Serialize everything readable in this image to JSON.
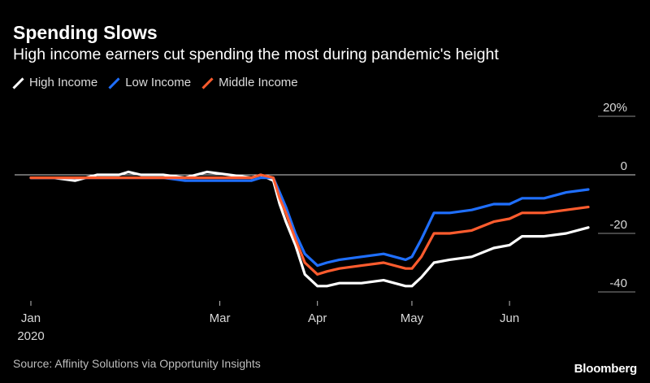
{
  "header": {
    "title": "Spending Slows",
    "subtitle": "High income earners cut spending the most during pandemic's height"
  },
  "legend": [
    {
      "label": "High Income",
      "color": "#ffffff"
    },
    {
      "label": "Low Income",
      "color": "#1f6fff"
    },
    {
      "label": "Middle Income",
      "color": "#ff5c2e"
    }
  ],
  "footer": {
    "source": "Source: Affinity Solutions via Opportunity Insights",
    "brand": "Bloomberg"
  },
  "chart_data": {
    "type": "line",
    "title": "Spending Slows",
    "subtitle": "High income earners cut spending the most during pandemic's height",
    "xlabel": "",
    "ylabel": "",
    "x_range": [
      "2020-01-01",
      "2020-06-26"
    ],
    "ylim": [
      -43,
      22
    ],
    "y_ticks": [
      20,
      0,
      -20,
      -40
    ],
    "y_tick_labels": [
      "20%",
      "0",
      "-20",
      "-40"
    ],
    "x_ticks": [
      {
        "date": "2020-01-01",
        "label": "Jan",
        "sublabel": "2020"
      },
      {
        "date": "2020-03-01",
        "label": "Mar",
        "sublabel": ""
      },
      {
        "date": "2020-04-01",
        "label": "Apr",
        "sublabel": ""
      },
      {
        "date": "2020-05-01",
        "label": "May",
        "sublabel": ""
      },
      {
        "date": "2020-06-01",
        "label": "Jun",
        "sublabel": ""
      }
    ],
    "zero_line": true,
    "grid": false,
    "legend_position": "top-left",
    "series": [
      {
        "name": "High Income",
        "color": "#ffffff",
        "points": [
          [
            "2020-01-01",
            -1
          ],
          [
            "2020-01-08",
            -1
          ],
          [
            "2020-01-15",
            -2
          ],
          [
            "2020-01-22",
            0
          ],
          [
            "2020-01-29",
            0
          ],
          [
            "2020-02-01",
            1
          ],
          [
            "2020-02-05",
            0
          ],
          [
            "2020-02-12",
            0
          ],
          [
            "2020-02-19",
            -1
          ],
          [
            "2020-02-26",
            1
          ],
          [
            "2020-03-04",
            0
          ],
          [
            "2020-03-11",
            -1
          ],
          [
            "2020-03-14",
            0
          ],
          [
            "2020-03-18",
            -2
          ],
          [
            "2020-03-20",
            -10
          ],
          [
            "2020-03-22",
            -16
          ],
          [
            "2020-03-25",
            -24
          ],
          [
            "2020-03-28",
            -34
          ],
          [
            "2020-04-01",
            -38
          ],
          [
            "2020-04-04",
            -38
          ],
          [
            "2020-04-08",
            -37
          ],
          [
            "2020-04-15",
            -37
          ],
          [
            "2020-04-22",
            -36
          ],
          [
            "2020-04-29",
            -38
          ],
          [
            "2020-05-01",
            -38
          ],
          [
            "2020-05-04",
            -35
          ],
          [
            "2020-05-08",
            -30
          ],
          [
            "2020-05-13",
            -29
          ],
          [
            "2020-05-20",
            -28
          ],
          [
            "2020-05-27",
            -25
          ],
          [
            "2020-06-01",
            -24
          ],
          [
            "2020-06-05",
            -21
          ],
          [
            "2020-06-12",
            -21
          ],
          [
            "2020-06-19",
            -20
          ],
          [
            "2020-06-26",
            -18
          ]
        ]
      },
      {
        "name": "Low Income",
        "color": "#1f6fff",
        "points": [
          [
            "2020-01-01",
            -1
          ],
          [
            "2020-01-08",
            -1
          ],
          [
            "2020-01-15",
            -1
          ],
          [
            "2020-01-22",
            -1
          ],
          [
            "2020-01-29",
            -1
          ],
          [
            "2020-02-05",
            -1
          ],
          [
            "2020-02-12",
            -1
          ],
          [
            "2020-02-19",
            -2
          ],
          [
            "2020-02-26",
            -2
          ],
          [
            "2020-03-04",
            -2
          ],
          [
            "2020-03-11",
            -2
          ],
          [
            "2020-03-14",
            -1
          ],
          [
            "2020-03-18",
            -1
          ],
          [
            "2020-03-20",
            -6
          ],
          [
            "2020-03-22",
            -11
          ],
          [
            "2020-03-25",
            -20
          ],
          [
            "2020-03-28",
            -27
          ],
          [
            "2020-04-01",
            -31
          ],
          [
            "2020-04-04",
            -30
          ],
          [
            "2020-04-08",
            -29
          ],
          [
            "2020-04-15",
            -28
          ],
          [
            "2020-04-22",
            -27
          ],
          [
            "2020-04-29",
            -29
          ],
          [
            "2020-05-01",
            -28
          ],
          [
            "2020-05-04",
            -22
          ],
          [
            "2020-05-08",
            -13
          ],
          [
            "2020-05-13",
            -13
          ],
          [
            "2020-05-20",
            -12
          ],
          [
            "2020-05-27",
            -10
          ],
          [
            "2020-06-01",
            -10
          ],
          [
            "2020-06-05",
            -8
          ],
          [
            "2020-06-12",
            -8
          ],
          [
            "2020-06-19",
            -6
          ],
          [
            "2020-06-26",
            -5
          ]
        ]
      },
      {
        "name": "Middle Income",
        "color": "#ff5c2e",
        "points": [
          [
            "2020-01-01",
            -1
          ],
          [
            "2020-01-08",
            -1
          ],
          [
            "2020-01-15",
            -1
          ],
          [
            "2020-01-22",
            -1
          ],
          [
            "2020-01-29",
            -1
          ],
          [
            "2020-02-05",
            -1
          ],
          [
            "2020-02-12",
            -1
          ],
          [
            "2020-02-19",
            -1
          ],
          [
            "2020-02-26",
            -1
          ],
          [
            "2020-03-04",
            -1
          ],
          [
            "2020-03-11",
            -1
          ],
          [
            "2020-03-14",
            0
          ],
          [
            "2020-03-18",
            -1
          ],
          [
            "2020-03-20",
            -8
          ],
          [
            "2020-03-22",
            -13
          ],
          [
            "2020-03-25",
            -22
          ],
          [
            "2020-03-28",
            -30
          ],
          [
            "2020-04-01",
            -34
          ],
          [
            "2020-04-04",
            -33
          ],
          [
            "2020-04-08",
            -32
          ],
          [
            "2020-04-15",
            -31
          ],
          [
            "2020-04-22",
            -30
          ],
          [
            "2020-04-29",
            -32
          ],
          [
            "2020-05-01",
            -32
          ],
          [
            "2020-05-04",
            -28
          ],
          [
            "2020-05-08",
            -20
          ],
          [
            "2020-05-13",
            -20
          ],
          [
            "2020-05-20",
            -19
          ],
          [
            "2020-05-27",
            -16
          ],
          [
            "2020-06-01",
            -15
          ],
          [
            "2020-06-05",
            -13
          ],
          [
            "2020-06-12",
            -13
          ],
          [
            "2020-06-19",
            -12
          ],
          [
            "2020-06-26",
            -11
          ]
        ]
      }
    ]
  }
}
